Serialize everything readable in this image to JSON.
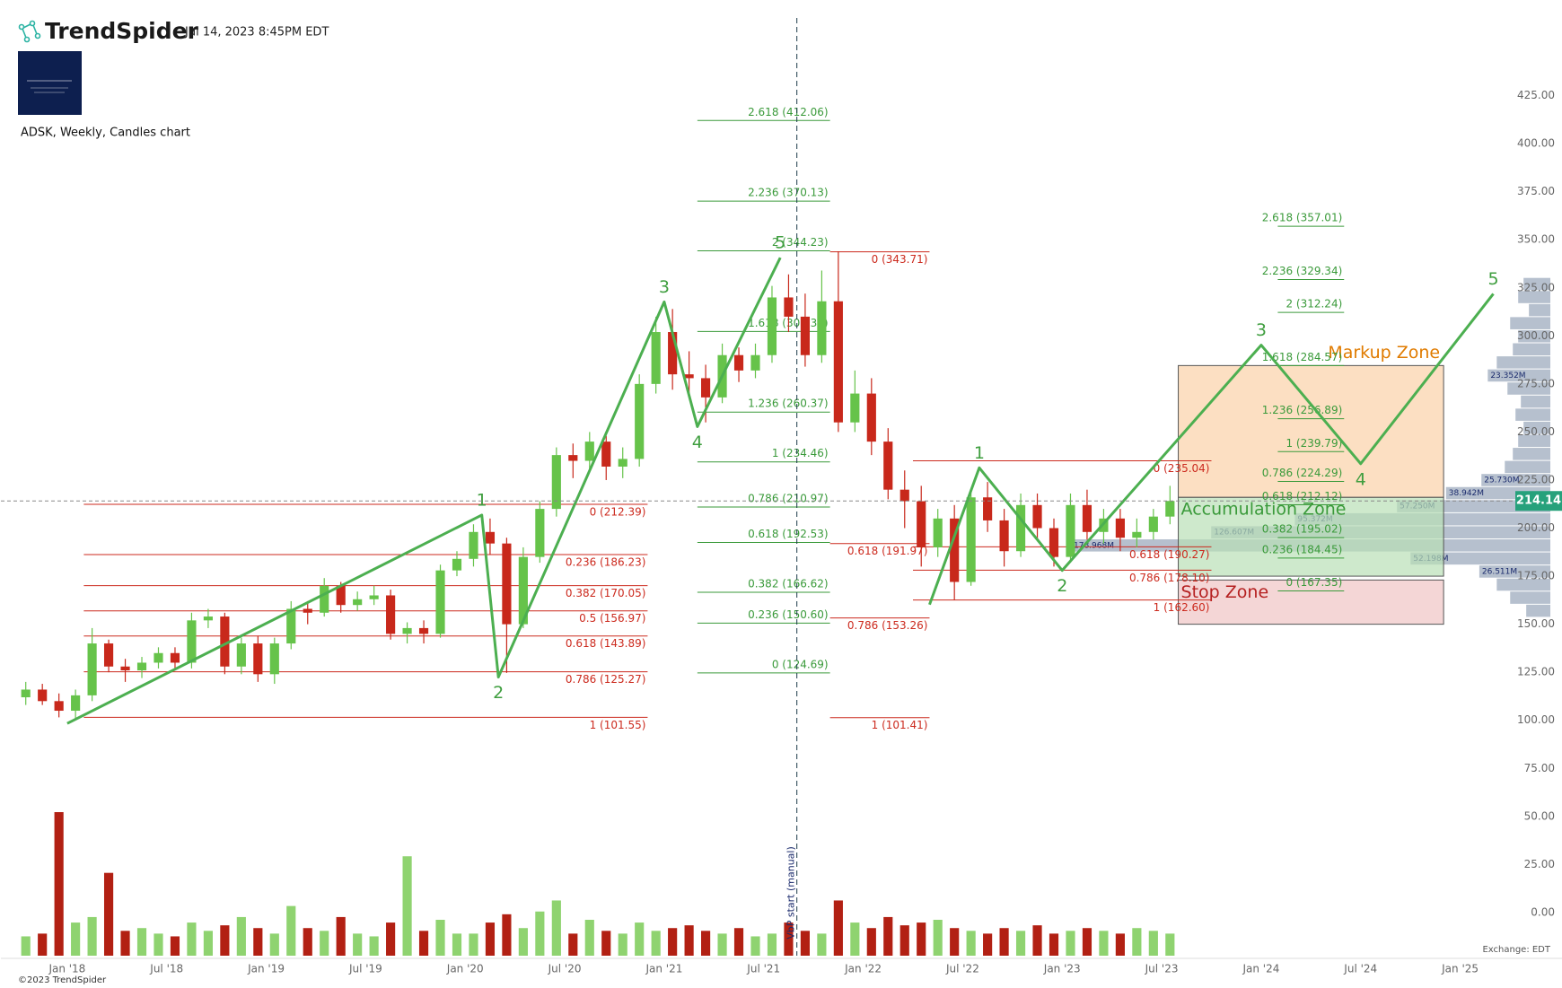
{
  "header": {
    "brand": "TrendSpider",
    "timestamp": "Jul 14, 2023 8:45PM EDT"
  },
  "footer": {
    "copyright": "©2023 TrendSpider",
    "exchange": "Exchange: EDT"
  },
  "chart_data": {
    "type": "candlestick",
    "title": "ADSK, Weekly, Candles chart",
    "up_color": "#66c34a",
    "down_color": "#c8281b",
    "volume_up_color": "#8fd370",
    "volume_down_color": "#b22013",
    "x": [
      "2017-10",
      "2017-11",
      "2017-12",
      "2018-01",
      "2018-02",
      "2018-03",
      "2018-04",
      "2018-05",
      "2018-06",
      "2018-07",
      "2018-08",
      "2018-09",
      "2018-10",
      "2018-11",
      "2018-12",
      "2019-01",
      "2019-02",
      "2019-03",
      "2019-04",
      "2019-05",
      "2019-06",
      "2019-07",
      "2019-08",
      "2019-09",
      "2019-10",
      "2019-11",
      "2019-12",
      "2020-01",
      "2020-02",
      "2020-03",
      "2020-04",
      "2020-05",
      "2020-06",
      "2020-07",
      "2020-08",
      "2020-09",
      "2020-10",
      "2020-11",
      "2020-12",
      "2021-01",
      "2021-02",
      "2021-03",
      "2021-04",
      "2021-05",
      "2021-06",
      "2021-07",
      "2021-08",
      "2021-09",
      "2021-10",
      "2021-11",
      "2021-12",
      "2022-01",
      "2022-02",
      "2022-03",
      "2022-04",
      "2022-05",
      "2022-06",
      "2022-07",
      "2022-08",
      "2022-09",
      "2022-10",
      "2022-11",
      "2022-12",
      "2023-01",
      "2023-02",
      "2023-03",
      "2023-04",
      "2023-05",
      "2023-06",
      "2023-07"
    ],
    "open": [
      112,
      116,
      110,
      105,
      113,
      140,
      128,
      126,
      130,
      135,
      130,
      152,
      154,
      128,
      140,
      124,
      140,
      158,
      156,
      170,
      160,
      163,
      165,
      145,
      148,
      145,
      178,
      184,
      198,
      192,
      150,
      185,
      210,
      238,
      235,
      245,
      232,
      236,
      275,
      302,
      280,
      278,
      268,
      290,
      282,
      290,
      320,
      310,
      290,
      318,
      255,
      270,
      245,
      220,
      214,
      190,
      205,
      172,
      216,
      204,
      188,
      212,
      200,
      185,
      212,
      198,
      205,
      195,
      198,
      206
    ],
    "high": [
      120,
      119,
      114,
      116,
      148,
      142,
      132,
      133,
      138,
      138,
      156,
      158,
      156,
      143,
      144,
      143,
      162,
      162,
      174,
      172,
      167,
      170,
      168,
      151,
      152,
      181,
      188,
      202,
      205,
      195,
      190,
      214,
      242,
      244,
      250,
      248,
      242,
      280,
      310,
      314,
      292,
      285,
      296,
      294,
      296,
      326,
      332,
      322,
      334,
      344,
      282,
      278,
      252,
      230,
      222,
      210,
      212,
      220,
      224,
      210,
      218,
      218,
      205,
      218,
      220,
      210,
      210,
      205,
      210,
      222
    ],
    "low": [
      108,
      108,
      101.55,
      101,
      110,
      125,
      120,
      122,
      127,
      126,
      127,
      148,
      124,
      124,
      120,
      119,
      137,
      150,
      154,
      156,
      157,
      160,
      142,
      140,
      140,
      143,
      175,
      180,
      186,
      124.69,
      148,
      182,
      206,
      226,
      230,
      225,
      226,
      232,
      270,
      272,
      268,
      255,
      265,
      276,
      278,
      286,
      302,
      284,
      286,
      250,
      250,
      238,
      215,
      200,
      180,
      185,
      162.6,
      170,
      198,
      180,
      185,
      194,
      180,
      182,
      194,
      192,
      188,
      190,
      194,
      202
    ],
    "close": [
      116,
      110,
      105,
      113,
      140,
      128,
      126,
      130,
      135,
      130,
      152,
      154,
      128,
      140,
      124,
      140,
      158,
      156,
      170,
      160,
      163,
      165,
      145,
      148,
      145,
      178,
      184,
      198,
      192,
      150,
      185,
      210,
      238,
      235,
      245,
      232,
      236,
      275,
      302,
      280,
      278,
      268,
      290,
      282,
      290,
      320,
      310,
      290,
      318,
      255,
      270,
      245,
      220,
      214,
      190,
      205,
      172,
      216,
      204,
      188,
      212,
      200,
      185,
      212,
      198,
      205,
      195,
      198,
      206,
      214.14
    ],
    "volume": [
      7,
      8,
      52,
      12,
      14,
      30,
      9,
      10,
      8,
      7,
      12,
      9,
      11,
      14,
      10,
      8,
      18,
      10,
      9,
      14,
      8,
      7,
      12,
      36,
      9,
      13,
      8,
      8,
      12,
      15,
      10,
      16,
      20,
      8,
      13,
      9,
      8,
      12,
      9,
      10,
      11,
      9,
      8,
      10,
      7,
      8,
      12,
      9,
      8,
      20,
      12,
      10,
      14,
      11,
      12,
      13,
      10,
      9,
      8,
      10,
      9,
      11,
      8,
      9,
      10,
      9,
      8,
      10,
      9,
      8
    ],
    "xlim": [
      "2017-09",
      "2025-04"
    ],
    "xticks": [
      {
        "value": "2018-01",
        "label": "Jan '18"
      },
      {
        "value": "2018-07",
        "label": "Jul '18"
      },
      {
        "value": "2019-01",
        "label": "Jan '19"
      },
      {
        "value": "2019-07",
        "label": "Jul '19"
      },
      {
        "value": "2020-01",
        "label": "Jan '20"
      },
      {
        "value": "2020-07",
        "label": "Jul '20"
      },
      {
        "value": "2021-01",
        "label": "Jan '21"
      },
      {
        "value": "2021-07",
        "label": "Jul '21"
      },
      {
        "value": "2022-01",
        "label": "Jan '22"
      },
      {
        "value": "2022-07",
        "label": "Jul '22"
      },
      {
        "value": "2023-01",
        "label": "Jan '23"
      },
      {
        "value": "2023-07",
        "label": "Jul '23"
      },
      {
        "value": "2024-01",
        "label": "Jan '24"
      },
      {
        "value": "2024-07",
        "label": "Jul '24"
      },
      {
        "value": "2025-01",
        "label": "Jan '25"
      }
    ],
    "ylim": [
      -20.1,
      465.4
    ],
    "yticks": [
      {
        "value": 0,
        "label": "0.00"
      },
      {
        "value": 25,
        "label": "25.00"
      },
      {
        "value": 50,
        "label": "50.00"
      },
      {
        "value": 75,
        "label": "75.00"
      },
      {
        "value": 100,
        "label": "100.00"
      },
      {
        "value": 125,
        "label": "125.00"
      },
      {
        "value": 150,
        "label": "150.00"
      },
      {
        "value": 175,
        "label": "175.00"
      },
      {
        "value": 200,
        "label": "200.00"
      },
      {
        "value": 225,
        "label": "225.00"
      },
      {
        "value": 250,
        "label": "250.00"
      },
      {
        "value": 275,
        "label": "275.00"
      },
      {
        "value": 300,
        "label": "300.00"
      },
      {
        "value": 325,
        "label": "325.00"
      },
      {
        "value": 350,
        "label": "350.00"
      },
      {
        "value": 375,
        "label": "375.00"
      },
      {
        "value": 400,
        "label": "400.00"
      },
      {
        "value": 425,
        "label": "425.00"
      }
    ],
    "last_price": 214.14,
    "last_price_color": "#26a17b",
    "annotation": {
      "label": "VbP start (manual)",
      "x": "2021-09"
    },
    "fib_sets": [
      {
        "color": "#cc2a1e",
        "x": [
          "2018-02",
          "2020-12"
        ],
        "levels": [
          {
            "label": "0 (212.39)",
            "value": 212.39
          },
          {
            "label": "0.236 (186.23)",
            "value": 186.23
          },
          {
            "label": "0.382 (170.05)",
            "value": 170.05
          },
          {
            "label": "0.5 (156.97)",
            "value": 156.97
          },
          {
            "label": "0.618 (143.89)",
            "value": 143.89
          },
          {
            "label": "0.786 (125.27)",
            "value": 125.27
          },
          {
            "label": "1 (101.55)",
            "value": 101.55
          }
        ]
      },
      {
        "color": "#3a9a3a",
        "x": [
          "2021-03",
          "2021-11"
        ],
        "levels": [
          {
            "label": "2.618 (412.06)",
            "value": 412.06
          },
          {
            "label": "2.236 (370.13)",
            "value": 370.13
          },
          {
            "label": "2 (344.23)",
            "value": 344.23
          },
          {
            "label": "1.618 (302.32)",
            "value": 302.32
          },
          {
            "label": "1.236 (260.37)",
            "value": 260.37
          },
          {
            "label": "1 (234.46)",
            "value": 234.46
          },
          {
            "label": "0.786 (210.97)",
            "value": 210.97
          },
          {
            "label": "0.618 (192.53)",
            "value": 192.53
          },
          {
            "label": "0.382 (166.62)",
            "value": 166.62
          },
          {
            "label": "0.236 (150.60)",
            "value": 150.6
          },
          {
            "label": "0 (124.69)",
            "value": 124.69
          }
        ]
      },
      {
        "color": "#cc2a1e",
        "x": [
          "2021-11",
          "2022-05"
        ],
        "levels": [
          {
            "label": "0 (343.71)",
            "value": 343.71
          },
          {
            "label": "0.618 (191.97)",
            "value": 191.97
          },
          {
            "label": "0.786 (153.26)",
            "value": 153.26
          },
          {
            "label": "1 (101.41)",
            "value": 101.41
          }
        ]
      },
      {
        "color": "#cc2a1e",
        "x": [
          "2022-04",
          "2023-10"
        ],
        "levels": [
          {
            "label": "0 (235.04)",
            "value": 235.04
          },
          {
            "label": "0.618 (190.27)",
            "value": 190.27
          },
          {
            "label": "0.786 (178.10)",
            "value": 178.1
          },
          {
            "label": "1 (162.60)",
            "value": 162.6
          }
        ]
      },
      {
        "color": "#3a9a3a",
        "x": [
          "2024-02",
          "2024-06"
        ],
        "levels": [
          {
            "label": "2.618 (357.01)",
            "value": 357.01
          },
          {
            "label": "2.236 (329.34)",
            "value": 329.34
          },
          {
            "label": "2 (312.24)",
            "value": 312.24
          },
          {
            "label": "1.618 (284.57)",
            "value": 284.57
          },
          {
            "label": "1.236 (256.89)",
            "value": 256.89
          },
          {
            "label": "1 (239.79)",
            "value": 239.79
          },
          {
            "label": "0.786 (224.29)",
            "value": 224.29
          },
          {
            "label": "0.618 (212.12)",
            "value": 212.12
          },
          {
            "label": "0.382 (195.02)",
            "value": 195.02
          },
          {
            "label": "0.236 (184.45)",
            "value": 184.45
          },
          {
            "label": "0 (167.35)",
            "value": 167.35
          }
        ]
      }
    ],
    "waves": [
      {
        "color": "#4caf50",
        "start": {
          "x": "2018-01",
          "y": 98.4
        },
        "points": [
          {
            "label": "1",
            "x": "2020-02",
            "y": 206.8
          },
          {
            "label": "2",
            "x": "2020-03",
            "y": 122.5
          },
          {
            "label": "3",
            "x": "2021-01",
            "y": 317.7
          },
          {
            "label": "4",
            "x": "2021-03",
            "y": 252.8
          },
          {
            "label": "5",
            "x": "2021-08",
            "y": 340.7
          }
        ]
      },
      {
        "color": "#4caf50",
        "start": {
          "x": "2022-05",
          "y": 160.2
        },
        "points": [
          {
            "label": "1",
            "x": "2022-08",
            "y": 231.4
          },
          {
            "label": "2",
            "x": "2023-01",
            "y": 178
          },
          {
            "label": "3",
            "x": "2024-01",
            "y": 295.2
          },
          {
            "label": "4",
            "x": "2024-07",
            "y": 233.5
          },
          {
            "label": "5",
            "x": "2025-03",
            "y": 321.9
          }
        ]
      }
    ],
    "zones": [
      {
        "label": "Markup Zone",
        "color": "#fbd2a8",
        "text_color": "#e07b00",
        "x": [
          "2023-08",
          "2024-12"
        ],
        "range": [
          216,
          284.57
        ]
      },
      {
        "label": "Accumulation Zone",
        "color": "#b9e0b6",
        "text_color": "#3a9a3a",
        "x": [
          "2023-08",
          "2024-12"
        ],
        "range": [
          175,
          216
        ]
      },
      {
        "label": "Stop Zone",
        "color": "#efc4c4",
        "text_color": "#b52020",
        "x": [
          "2023-08",
          "2024-12"
        ],
        "range": [
          150,
          173
        ]
      }
    ],
    "volume_profile": {
      "color": "#9eabbd",
      "prices": [
        327,
        320.2,
        313.4,
        306.6,
        299.8,
        293,
        286.2,
        279.4,
        272.6,
        265.8,
        259,
        252.2,
        245.4,
        238.6,
        231.8,
        225,
        218.2,
        211.4,
        204.6,
        197.8,
        191,
        184.2,
        177.4,
        170.6,
        163.8,
        157
      ],
      "values": [
        10,
        12,
        8,
        15,
        12,
        14,
        20,
        23.352,
        16,
        11,
        13,
        10,
        12,
        14,
        17,
        25.73,
        38.942,
        57.25,
        95.372,
        126.607,
        178.968,
        52.198,
        26.511,
        20,
        15,
        9
      ],
      "value_labels": [
        null,
        null,
        null,
        null,
        null,
        null,
        null,
        "23.352M",
        null,
        null,
        null,
        null,
        null,
        null,
        null,
        "25.730M",
        "38.942M",
        "57.250M",
        "95.372M",
        "126.607M",
        "178.968M",
        "52.198M",
        "26.511M",
        null,
        null,
        null
      ]
    }
  }
}
